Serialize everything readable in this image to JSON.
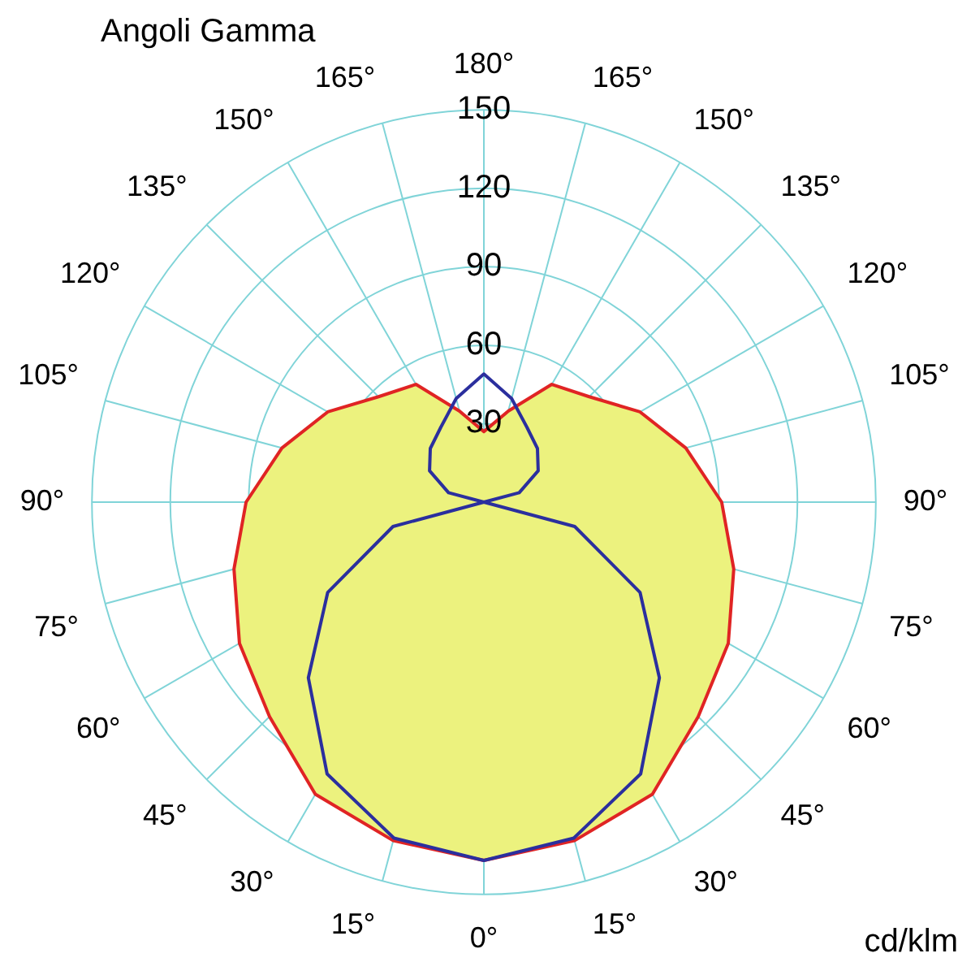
{
  "chart_data": {
    "type": "radar",
    "title": "Angoli Gamma",
    "annotations": [
      "cd/klm"
    ],
    "categories": [
      "180°",
      "165°",
      "150°",
      "135°",
      "120°",
      "105°",
      "90°",
      "75°",
      "60°",
      "45°",
      "30°",
      "15°",
      "0°",
      "15°",
      "30°",
      "45°",
      "60°",
      "75°",
      "90°",
      "105°",
      "120°",
      "135°",
      "150°",
      "165°"
    ],
    "series": [
      {
        "color": "#e02424",
        "values": [
          27,
          36,
          52,
          57,
          69,
          80,
          91,
          99,
          108,
          116,
          129,
          134,
          137,
          134,
          129,
          116,
          108,
          99,
          91,
          80,
          69,
          57,
          52,
          36
        ]
      },
      {
        "color": "#2b2f9e",
        "values": [
          49,
          41,
          33,
          29,
          24,
          14,
          0,
          36,
          69,
          95,
          120,
          133,
          137,
          133,
          120,
          95,
          69,
          36,
          0,
          14,
          24,
          29,
          33,
          41
        ]
      }
    ],
    "ylim": [
      0,
      150
    ],
    "yticks": [
      30,
      60,
      90,
      120,
      150
    ],
    "grid": true,
    "legend": false,
    "marker": "none",
    "line_style": "solid"
  }
}
